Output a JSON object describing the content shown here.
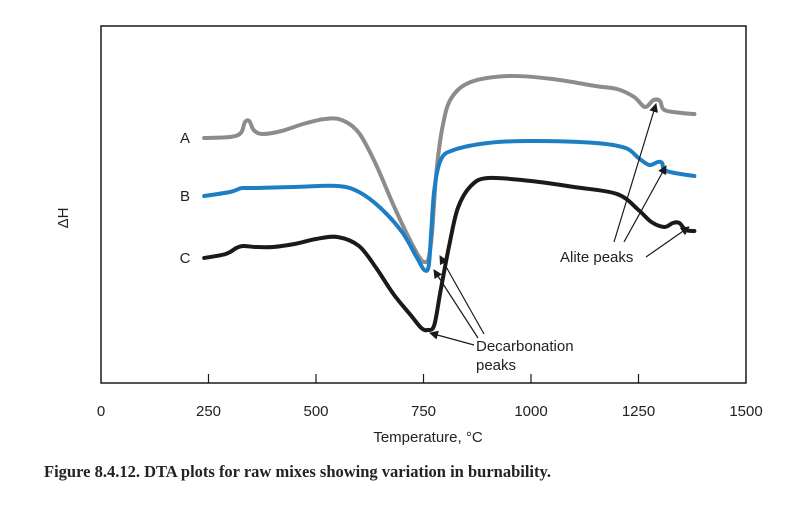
{
  "chart_data": {
    "type": "line",
    "title": "",
    "xlabel": "Temperature, °C",
    "ylabel": "ΔH",
    "xlim": [
      0,
      1500
    ],
    "xticks": [
      0,
      250,
      500,
      750,
      1000,
      1250,
      1500
    ],
    "grid": false,
    "series": [
      {
        "name": "A",
        "color": "#8c8c8c",
        "points": [
          [
            240,
            138
          ],
          [
            300,
            137
          ],
          [
            325,
            133
          ],
          [
            335,
            122
          ],
          [
            345,
            121
          ],
          [
            355,
            130
          ],
          [
            375,
            134
          ],
          [
            420,
            131
          ],
          [
            470,
            124
          ],
          [
            520,
            119
          ],
          [
            560,
            120
          ],
          [
            600,
            133
          ],
          [
            640,
            165
          ],
          [
            680,
            205
          ],
          [
            715,
            237
          ],
          [
            740,
            257
          ],
          [
            752,
            262
          ],
          [
            762,
            258
          ],
          [
            770,
            232
          ],
          [
            780,
            172
          ],
          [
            795,
            125
          ],
          [
            815,
            98
          ],
          [
            860,
            82
          ],
          [
            950,
            76
          ],
          [
            1050,
            79
          ],
          [
            1150,
            86
          ],
          [
            1200,
            89
          ],
          [
            1240,
            97
          ],
          [
            1265,
            107
          ],
          [
            1285,
            100
          ],
          [
            1300,
            101
          ],
          [
            1310,
            110
          ],
          [
            1350,
            113
          ],
          [
            1380,
            114
          ]
        ]
      },
      {
        "name": "B",
        "color": "#1e7ec3",
        "points": [
          [
            240,
            196
          ],
          [
            300,
            192
          ],
          [
            320,
            189
          ],
          [
            330,
            188
          ],
          [
            360,
            188
          ],
          [
            450,
            187
          ],
          [
            550,
            186
          ],
          [
            600,
            192
          ],
          [
            650,
            208
          ],
          [
            700,
            232
          ],
          [
            735,
            258
          ],
          [
            752,
            270
          ],
          [
            762,
            266
          ],
          [
            768,
            232
          ],
          [
            775,
            190
          ],
          [
            790,
            160
          ],
          [
            820,
            150
          ],
          [
            900,
            143
          ],
          [
            1000,
            141
          ],
          [
            1150,
            143
          ],
          [
            1220,
            148
          ],
          [
            1250,
            158
          ],
          [
            1275,
            165
          ],
          [
            1295,
            162
          ],
          [
            1305,
            163
          ],
          [
            1315,
            171
          ],
          [
            1380,
            176
          ]
        ]
      },
      {
        "name": "C",
        "color": "#1a1a1a",
        "points": [
          [
            240,
            258
          ],
          [
            290,
            254
          ],
          [
            315,
            248
          ],
          [
            330,
            246
          ],
          [
            360,
            247
          ],
          [
            400,
            247
          ],
          [
            450,
            244
          ],
          [
            500,
            239
          ],
          [
            550,
            237
          ],
          [
            600,
            246
          ],
          [
            640,
            268
          ],
          [
            680,
            294
          ],
          [
            720,
            315
          ],
          [
            745,
            328
          ],
          [
            760,
            330
          ],
          [
            775,
            325
          ],
          [
            790,
            290
          ],
          [
            810,
            245
          ],
          [
            830,
            208
          ],
          [
            860,
            186
          ],
          [
            900,
            178
          ],
          [
            1000,
            181
          ],
          [
            1100,
            187
          ],
          [
            1200,
            194
          ],
          [
            1250,
            210
          ],
          [
            1280,
            222
          ],
          [
            1310,
            227
          ],
          [
            1330,
            223
          ],
          [
            1345,
            223
          ],
          [
            1360,
            230
          ],
          [
            1380,
            231
          ]
        ]
      }
    ],
    "annotations": [
      {
        "text_lines": [
          "Decarbonation",
          "peaks"
        ]
      },
      {
        "text_lines": [
          "Alite peaks"
        ]
      }
    ]
  },
  "caption": "Figure 8.4.12. DTA plots for raw mixes showing variation in burnability."
}
